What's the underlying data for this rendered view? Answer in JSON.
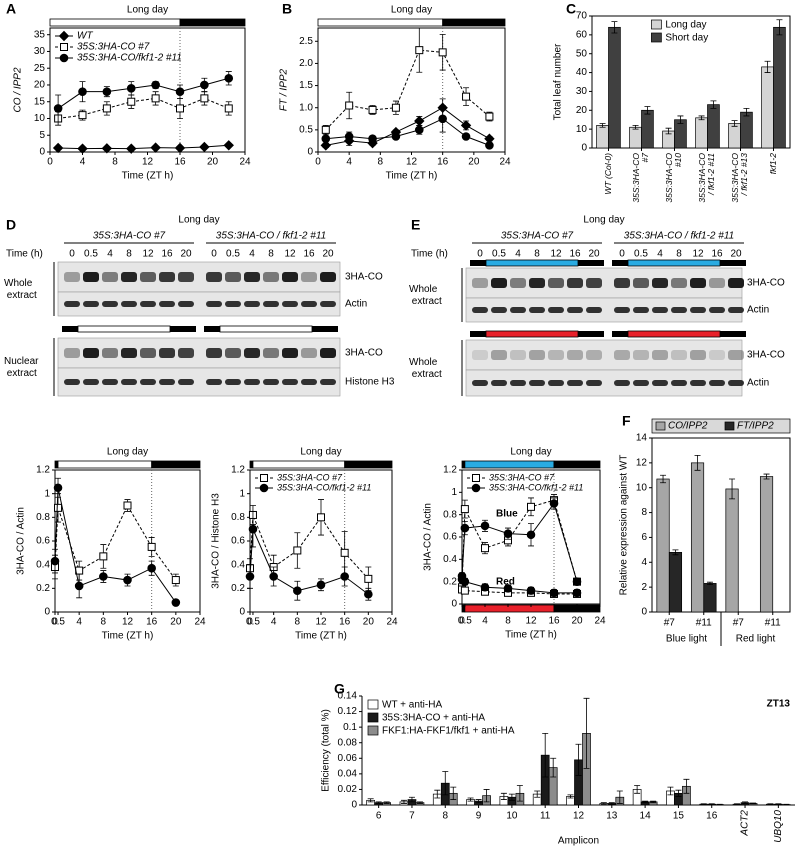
{
  "chart_data": [
    {
      "type": "line",
      "panel": "A",
      "title": "Long day",
      "xlabel": "Time (ZT h)",
      "ylabel": "CO / IPP2",
      "x": [
        1,
        4,
        7,
        10,
        13,
        16,
        19,
        22
      ],
      "xlim": [
        0,
        24
      ],
      "xticks": [
        0,
        4,
        8,
        12,
        16,
        20,
        24
      ],
      "ylim": [
        0,
        37
      ],
      "yticks": [
        0,
        5,
        10,
        15,
        20,
        25,
        30,
        35
      ],
      "light_bar": [
        {
          "from": 0,
          "to": 16,
          "color": "#ffffff"
        },
        {
          "from": 16,
          "to": 24,
          "color": "#000000"
        }
      ],
      "vline": 16,
      "legend": "upper left",
      "series": [
        {
          "name": "WT",
          "marker": "diamond",
          "filled": true,
          "dashed": false,
          "color": "#000000",
          "values": [
            1.2,
            1.0,
            1.1,
            1.0,
            1.3,
            1.2,
            1.5,
            2.0
          ],
          "errors": [
            0.3,
            0.2,
            0.2,
            0.2,
            0.2,
            0.2,
            0.3,
            0.3
          ]
        },
        {
          "name": "35S:3HA-CO #7",
          "marker": "square",
          "filled": false,
          "dashed": true,
          "color": "#000000",
          "values": [
            10,
            11,
            13,
            15,
            16,
            13,
            16,
            13
          ],
          "errors": [
            2,
            1.5,
            2,
            2,
            2,
            3,
            2,
            2
          ]
        },
        {
          "name": "35S:3HA-CO/fkf1-2 #11",
          "marker": "circle",
          "filled": true,
          "dashed": false,
          "color": "#000000",
          "values": [
            13,
            18,
            18,
            19,
            20,
            18,
            20,
            22
          ],
          "errors": [
            4,
            3,
            1.5,
            2,
            1,
            2,
            2,
            2
          ]
        }
      ]
    },
    {
      "type": "line",
      "panel": "B",
      "title": "Long day",
      "xlabel": "Time (ZT h)",
      "ylabel": "FT / IPP2",
      "x": [
        1,
        4,
        7,
        10,
        13,
        16,
        19,
        22
      ],
      "xlim": [
        0,
        24
      ],
      "xticks": [
        0,
        4,
        8,
        12,
        16,
        20,
        24
      ],
      "ylim": [
        0,
        2.8
      ],
      "yticks": [
        0,
        0.5,
        {
          "value": 1,
          "label": "1.0"
        },
        1.5,
        {
          "value": 2,
          "label": "2.0"
        },
        2.5
      ],
      "light_bar": [
        {
          "from": 0,
          "to": 16,
          "color": "#ffffff"
        },
        {
          "from": 16,
          "to": 24,
          "color": "#000000"
        }
      ],
      "vline": 16,
      "series": [
        {
          "marker": "diamond",
          "filled": true,
          "dashed": false,
          "color": "#000000",
          "values": [
            0.15,
            0.25,
            0.2,
            0.45,
            0.7,
            1.0,
            0.6,
            0.3
          ],
          "errors": [
            0.05,
            0.1,
            0.05,
            0.05,
            0.1,
            0.2,
            0.1,
            0.05
          ]
        },
        {
          "marker": "square",
          "filled": false,
          "dashed": true,
          "color": "#000000",
          "values": [
            0.5,
            1.05,
            0.95,
            1.0,
            2.3,
            2.25,
            1.25,
            0.8
          ],
          "errors": [
            0.1,
            0.3,
            0.1,
            0.15,
            0.5,
            0.4,
            0.2,
            0.1
          ]
        },
        {
          "marker": "circle",
          "filled": true,
          "dashed": false,
          "color": "#000000",
          "values": [
            0.3,
            0.35,
            0.3,
            0.35,
            0.5,
            0.75,
            0.35,
            0.15
          ],
          "errors": [
            0.05,
            0.1,
            0.05,
            0.05,
            0.1,
            0.3,
            0.05,
            0.05
          ]
        }
      ]
    },
    {
      "type": "bar",
      "panel": "C",
      "ylabel": "Total leaf number",
      "categories": [
        "WT (Col-0)",
        "35S:3HA-CO #7",
        "35S:3HA-CO #10",
        "35S:3HA-CO / fkf1-2 #11",
        "35S:3HA-CO / fkf1-2 #13",
        "fkf1-2"
      ],
      "ylim": [
        0,
        70
      ],
      "yticks": [
        0,
        10,
        20,
        30,
        40,
        50,
        60,
        70
      ],
      "rotate_labels": true,
      "legend": "upper center",
      "series": [
        {
          "name": "Long day",
          "color": "#d4d4d4",
          "values": [
            12,
            11,
            9,
            16,
            13,
            43
          ],
          "errors": [
            1,
            1,
            1.5,
            1,
            1.5,
            3
          ]
        },
        {
          "name": "Short day",
          "color": "#404040",
          "values": [
            64,
            20,
            15,
            23,
            19,
            64
          ],
          "errors": [
            3,
            2,
            2,
            2,
            2,
            4
          ]
        }
      ]
    },
    {
      "type": "line",
      "title": "Long day",
      "xlabel": "Time (ZT h)",
      "ylabel": "3HA-CO / Actin",
      "x": [
        0,
        0.5,
        4,
        8,
        12,
        16,
        20
      ],
      "xlim": [
        0,
        24
      ],
      "xticks": [
        0,
        0.5,
        4,
        8,
        12,
        16,
        20,
        24
      ],
      "ylim": [
        0,
        1.2
      ],
      "yticks": [
        0,
        0.2,
        0.4,
        0.6,
        0.8,
        1,
        1.2
      ],
      "light_bar": [
        {
          "from": 0,
          "to": 0.5,
          "color": "#000000"
        },
        {
          "from": 0.5,
          "to": 16,
          "color": "#ffffff"
        },
        {
          "from": 16,
          "to": 24,
          "color": "#000000"
        }
      ],
      "vline": 16,
      "series": [
        {
          "marker": "square",
          "filled": false,
          "dashed": true,
          "color": "#000000",
          "values": [
            0.38,
            0.88,
            0.35,
            0.47,
            0.9,
            0.55,
            0.27
          ],
          "errors": [
            0.1,
            0.12,
            0.08,
            0.1,
            0.05,
            0.08,
            0.05
          ]
        },
        {
          "marker": "circle",
          "filled": true,
          "dashed": false,
          "color": "#000000",
          "values": [
            0.43,
            1.05,
            0.22,
            0.3,
            0.27,
            0.37,
            0.08
          ],
          "errors": [
            0.1,
            0.08,
            0.1,
            0.05,
            0.05,
            0.06,
            0.02
          ]
        }
      ]
    },
    {
      "type": "line",
      "title": "Long day",
      "xlabel": "Time (ZT h)",
      "ylabel": "3HA-CO / Histone H3",
      "x": [
        0,
        0.5,
        4,
        8,
        12,
        16,
        20
      ],
      "xlim": [
        0,
        24
      ],
      "xticks": [
        0,
        0.5,
        4,
        8,
        12,
        16,
        20,
        24
      ],
      "ylim": [
        0,
        1.2
      ],
      "yticks": [
        0,
        0.2,
        0.4,
        0.6,
        0.8,
        1,
        1.2
      ],
      "light_bar": [
        {
          "from": 0,
          "to": 0.5,
          "color": "#000000"
        },
        {
          "from": 0.5,
          "to": 16,
          "color": "#ffffff"
        },
        {
          "from": 16,
          "to": 24,
          "color": "#000000"
        }
      ],
      "vline": 16,
      "legend": "upper left",
      "series": [
        {
          "name": "35S:3HA-CO #7",
          "marker": "square",
          "filled": false,
          "dashed": true,
          "color": "#000000",
          "values": [
            0.37,
            0.82,
            0.38,
            0.52,
            0.8,
            0.5,
            0.28
          ],
          "errors": [
            0.08,
            0.08,
            0.1,
            0.15,
            0.15,
            0.18,
            0.1
          ]
        },
        {
          "name": "35S:3HA-CO/fkf1-2 #11",
          "marker": "circle",
          "filled": true,
          "dashed": false,
          "color": "#000000",
          "values": [
            0.3,
            0.7,
            0.3,
            0.18,
            0.23,
            0.3,
            0.15
          ],
          "errors": [
            0.1,
            0.15,
            0.08,
            0.08,
            0.05,
            0.08,
            0.05
          ]
        }
      ]
    },
    {
      "type": "line",
      "title": "Long day",
      "xlabel": "Time (ZT h)",
      "ylabel": "3HA-CO / Actin",
      "x": [
        0,
        0.5,
        4,
        8,
        12,
        16,
        20
      ],
      "xlim": [
        0,
        24
      ],
      "xticks": [
        0,
        0.5,
        4,
        8,
        12,
        16,
        20,
        24
      ],
      "ylim": [
        0,
        1.2
      ],
      "yticks": [
        0,
        0.2,
        0.4,
        0.6,
        0.8,
        1,
        1.2
      ],
      "light_bar": [
        {
          "from": 0,
          "to": 0.5,
          "color": "#000000"
        },
        {
          "from": 0.5,
          "to": 16,
          "color": "#29abe2"
        },
        {
          "from": 16,
          "to": 24,
          "color": "#000000"
        }
      ],
      "light_bar_bottom": [
        {
          "from": 0,
          "to": 0.5,
          "color": "#000000"
        },
        {
          "from": 0.5,
          "to": 16,
          "color": "#e8202a"
        },
        {
          "from": 16,
          "to": 24,
          "color": "#000000"
        }
      ],
      "vline": 16,
      "legend": "upper left",
      "annotations": [
        "Blue",
        "Red"
      ],
      "series": [
        {
          "name": "35S:3HA-CO #7",
          "marker": "square",
          "filled": false,
          "dashed": true,
          "color": "#000000",
          "values": [
            0.15,
            0.85,
            0.5,
            0.57,
            0.87,
            0.93,
            0.2
          ],
          "errors": [
            0.03,
            0.08,
            0.05,
            0.05,
            0.08,
            0.05,
            0.03
          ]
        },
        {
          "name": "35S:3HA-CO/fkf1-2 #11",
          "marker": "circle",
          "filled": true,
          "dashed": false,
          "color": "#000000",
          "values": [
            0.25,
            0.68,
            0.7,
            0.63,
            0.62,
            0.9,
            0.2
          ],
          "errors": [
            0.03,
            0.06,
            0.05,
            0.05,
            0.1,
            0.05,
            0.03
          ]
        },
        {
          "marker": "square",
          "filled": false,
          "dashed": true,
          "color": "#000000",
          "values": [
            0.13,
            0.12,
            0.11,
            0.1,
            0.1,
            0.09,
            0.09
          ],
          "errors": [
            0.02,
            0.02,
            0.02,
            0.02,
            0.02,
            0.02,
            0.02
          ]
        },
        {
          "marker": "circle",
          "filled": true,
          "dashed": false,
          "color": "#000000",
          "values": [
            0.22,
            0.2,
            0.15,
            0.14,
            0.12,
            0.1,
            0.1
          ],
          "errors": [
            0.03,
            0.03,
            0.03,
            0.03,
            0.03,
            0.03,
            0.03
          ]
        }
      ]
    },
    {
      "type": "bar",
      "panel": "F",
      "ylabel": "Relative expression against WT",
      "categories": [
        "#7",
        "#11",
        "#7",
        "#11"
      ],
      "groups": [
        "Blue light",
        "Red light"
      ],
      "ylim": [
        0,
        14
      ],
      "yticks": [
        0,
        2,
        4,
        6,
        8,
        10,
        12,
        14
      ],
      "rotate_labels": false,
      "legend": "top",
      "series": [
        {
          "name": "CO/IPP2",
          "color": "#a6a6a6",
          "values": [
            10.7,
            12,
            9.9,
            10.9
          ],
          "errors": [
            0.3,
            0.6,
            0.8,
            0.2
          ]
        },
        {
          "name": "FT/IPP2",
          "color": "#262626",
          "values": [
            4.8,
            2.3,
            0,
            0
          ],
          "errors": [
            0.2,
            0.1,
            0,
            0
          ]
        }
      ]
    },
    {
      "type": "bar",
      "panel": "G",
      "annotation": "ZT13",
      "ylabel": "Efficiency (total %)",
      "xlabel": "Amplicon",
      "categories": [
        "6",
        "7",
        "8",
        "9",
        "10",
        "11",
        "12",
        "13",
        "14",
        "15",
        "16",
        "ACT2",
        "UBQ10"
      ],
      "ylim": [
        0,
        0.14
      ],
      "yticks": [
        0,
        0.02,
        0.04,
        0.06,
        0.08,
        0.1,
        0.12,
        0.14
      ],
      "rotate_labels": "long",
      "legend": "upper left",
      "series": [
        {
          "name": "WT + anti-HA",
          "color": "#ffffff",
          "values": [
            0.006,
            0.004,
            0.014,
            0.007,
            0.011,
            0.014,
            0.011,
            0.002,
            0.02,
            0.018,
            0.001,
            0.001,
            0.001
          ],
          "errors": [
            0.002,
            0.002,
            0.005,
            0.002,
            0.004,
            0.004,
            0.002,
            0.001,
            0.005,
            0.005,
            0.0005,
            0.0005,
            0.0005
          ]
        },
        {
          "name": "35S:3HA-CO + anti-HA",
          "color": "#1a1a1a",
          "values": [
            0.003,
            0.007,
            0.028,
            0.005,
            0.01,
            0.064,
            0.058,
            0.002,
            0.004,
            0.015,
            0.001,
            0.003,
            0.001
          ],
          "errors": [
            0.001,
            0.003,
            0.015,
            0.002,
            0.004,
            0.028,
            0.02,
            0.001,
            0.001,
            0.004,
            0.0005,
            0.001,
            0.0005
          ]
        },
        {
          "name": "FKF1:HA-FKF1/fkf1 + anti-HA",
          "color": "#8c8c8c",
          "values": [
            0.003,
            0.003,
            0.015,
            0.012,
            0.015,
            0.048,
            0.092,
            0.01,
            0.004,
            0.024,
            0.0005,
            0.002,
            0.0005
          ],
          "errors": [
            0.001,
            0.001,
            0.008,
            0.008,
            0.01,
            0.012,
            0.045,
            0.008,
            0.001,
            0.009,
            0.0005,
            0.0005,
            0.0005
          ]
        }
      ]
    }
  ],
  "blots": [
    {
      "panel": "D",
      "title": "Long day",
      "groups": [
        "35S:3HA-CO #7",
        "35S:3HA-CO / fkf1-2 #11"
      ],
      "time_label": "Time (h)",
      "times": [
        "0",
        "0.5",
        "4",
        "8",
        "12",
        "16",
        "20"
      ],
      "sections": [
        {
          "label": "Whole extract",
          "rows": [
            "3HA-CO",
            "Actin"
          ]
        },
        {
          "label": "Nuclear extract",
          "rows": [
            "3HA-CO",
            "Histone H3"
          ]
        }
      ]
    },
    {
      "panel": "E",
      "title": "Long day",
      "groups": [
        "35S:3HA-CO #7",
        "35S:3HA-CO / fkf1-2 #11"
      ],
      "time_label": "Time (h)",
      "times": [
        "0",
        "0.5",
        "4",
        "8",
        "12",
        "16",
        "20"
      ],
      "sections": [
        {
          "label": "Whole extract",
          "rows": [
            "3HA-CO",
            "Actin"
          ]
        },
        {
          "label": "Whole extract",
          "rows": [
            "3HA-CO",
            "Actin"
          ]
        }
      ]
    }
  ]
}
